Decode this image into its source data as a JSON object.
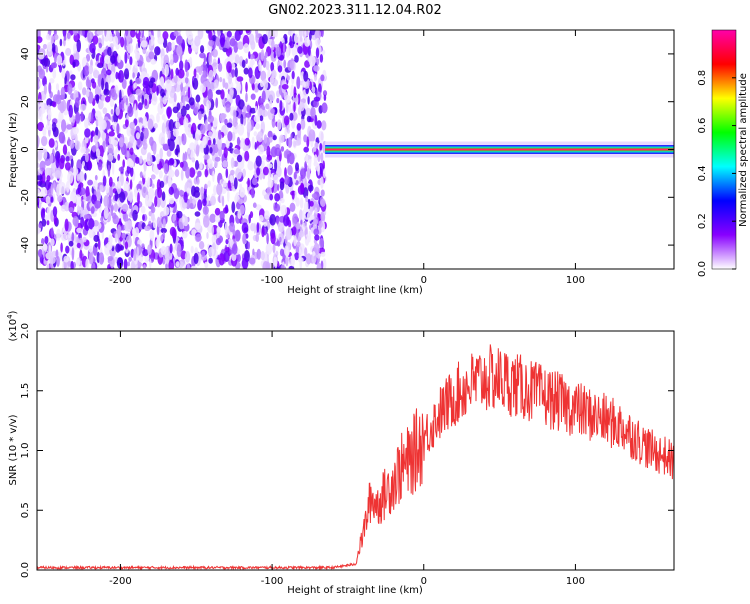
{
  "title": "GN02.2023.311.12.04.R02",
  "colorbar": {
    "label": "Normalized spectral amplitude",
    "ticks": [
      "0.0",
      "0.2",
      "0.4",
      "0.6",
      "0.8"
    ],
    "stops": [
      "#ffffff",
      "#8800ff",
      "#0000ff",
      "#00ffff",
      "#00ff00",
      "#ffff00",
      "#ff0000",
      "#ff00aa"
    ]
  },
  "chart_data": [
    {
      "type": "heatmap",
      "xlabel": "Height of straight line (km)",
      "ylabel": "Frequency (Hz)",
      "xlim": [
        -255,
        165
      ],
      "ylim": [
        -50,
        50
      ],
      "xticks": [
        "-200",
        "-100",
        "0",
        "100"
      ],
      "yticks": [
        "-40",
        "-20",
        "0",
        "20",
        "40"
      ],
      "noise_region_x": [
        -255,
        -65
      ],
      "signal_line": {
        "frequency": 0,
        "x_range": [
          -65,
          165
        ],
        "peak_amplitude": 0.95
      }
    },
    {
      "type": "line",
      "xlabel": "Height of straight line (km)",
      "ylabel": "SNR (10 * v/v)",
      "scale_label": "(x10",
      "scale_exponent": "4",
      "xlim": [
        -255,
        165
      ],
      "ylim": [
        0,
        2.0
      ],
      "xticks": [
        "-200",
        "-100",
        "0",
        "100"
      ],
      "yticks": [
        "0.0",
        "0.5",
        "1.0",
        "1.5",
        "2.0"
      ],
      "color": "#ee3333",
      "series": [
        {
          "x": [
            -255,
            -200,
            -150,
            -100,
            -60,
            -45,
            -40,
            -35,
            -30,
            -25,
            -20,
            -15,
            -10,
            -5,
            0,
            10,
            20,
            30,
            40,
            50,
            60,
            70,
            80,
            90,
            100,
            110,
            120,
            130,
            140,
            150,
            160,
            165
          ],
          "values": [
            0.02,
            0.02,
            0.02,
            0.02,
            0.02,
            0.05,
            0.3,
            0.6,
            0.55,
            0.65,
            0.75,
            0.85,
            0.9,
            1.0,
            1.1,
            1.3,
            1.45,
            1.55,
            1.6,
            1.6,
            1.55,
            1.5,
            1.45,
            1.4,
            1.35,
            1.3,
            1.25,
            1.2,
            1.1,
            1.0,
            0.95,
            0.9
          ]
        }
      ]
    }
  ]
}
